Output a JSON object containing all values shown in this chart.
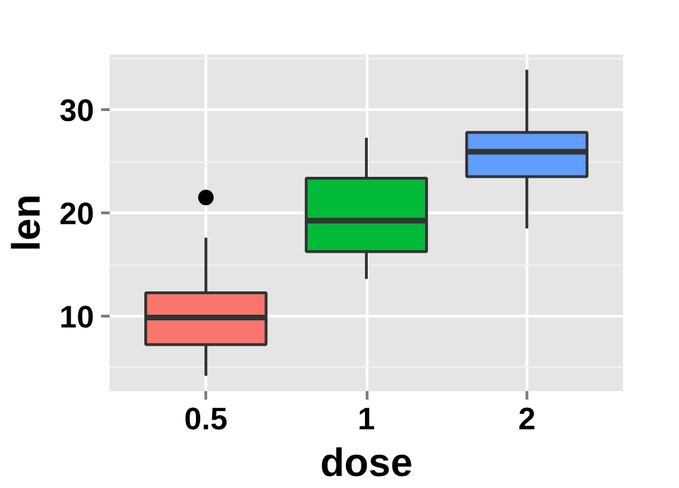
{
  "chart_data": {
    "type": "box",
    "xlabel": "dose",
    "ylabel": "len",
    "categories": [
      "0.5",
      "1",
      "2"
    ],
    "ylim": [
      2.715,
      35.385
    ],
    "yticks": [
      10,
      20,
      30
    ],
    "grid": true,
    "series": [
      {
        "color": "#f8766d",
        "boxes": [
          {
            "low": 4.2,
            "q1": 7.225,
            "median": 9.85,
            "q3": 12.25,
            "high": 17.6,
            "outliers": [
              21.5
            ]
          },
          null,
          null
        ]
      },
      {
        "color": "#00ba38",
        "boxes": [
          null,
          {
            "low": 13.6,
            "q1": 16.25,
            "median": 19.25,
            "q3": 23.375,
            "high": 27.3
          },
          null
        ]
      },
      {
        "color": "#619cff",
        "boxes": [
          null,
          null,
          {
            "low": 18.5,
            "q1": 23.525,
            "median": 25.95,
            "q3": 27.825,
            "high": 33.9
          }
        ]
      }
    ]
  }
}
